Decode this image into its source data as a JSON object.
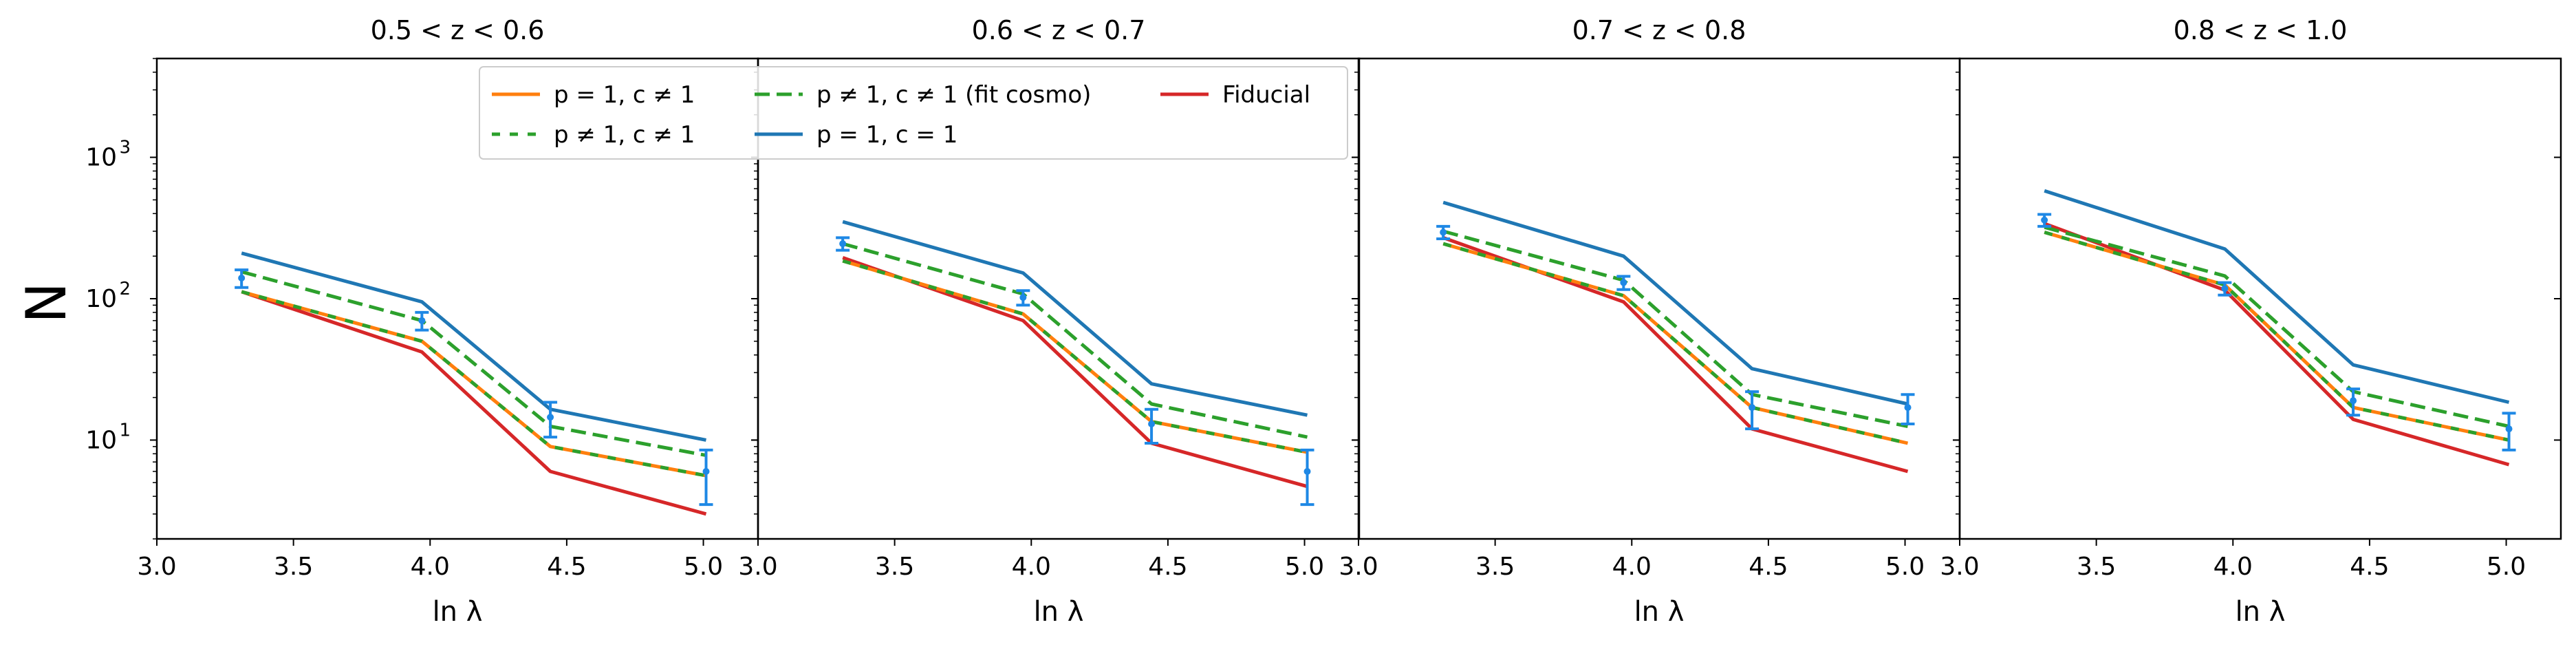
{
  "chart_data": {
    "type": "line",
    "ylabel": "N",
    "yscale": "log",
    "ylim": [
      2,
      5000
    ],
    "xlim": [
      3.0,
      5.2
    ],
    "x": [
      3.31,
      3.97,
      4.44,
      5.01
    ],
    "xticks": [
      {
        "value": 3.0,
        "label": "3.0"
      },
      {
        "value": 3.5,
        "label": "3.5"
      },
      {
        "value": 4.0,
        "label": "4.0"
      },
      {
        "value": 4.5,
        "label": "4.5"
      },
      {
        "value": 5.0,
        "label": "5.0"
      }
    ],
    "yticks": [
      {
        "value": 10,
        "base": "10",
        "exp": "1"
      },
      {
        "value": 100,
        "base": "10",
        "exp": "2"
      },
      {
        "value": 1000,
        "base": "10",
        "exp": "3"
      }
    ],
    "legend": {
      "placement": "top-right of first panel",
      "entries": [
        {
          "key": "p1_cne1",
          "label": "p = 1, c ≠ 1"
        },
        {
          "key": "pne1_c1",
          "label": "p ≠ 1, c ≠ 1"
        },
        {
          "key": "pne1_cne1_fit",
          "label": "p ≠ 1, c ≠ 1 (fit cosmo)"
        },
        {
          "key": "p1_c1",
          "label": "p = 1, c = 1"
        },
        {
          "key": "fiducial",
          "label": "Fiducial"
        }
      ]
    },
    "colors": {
      "p1_cne1": "#ff7f0e",
      "pne1_c1": "#2ca02c",
      "pne1_cne1_fit": "#2ca02c",
      "p1_c1": "#1f77b4",
      "fiducial": "#d62728",
      "data_points": "#1e88e5"
    },
    "panels": [
      {
        "title": "0.5 < z < 0.6",
        "xlabel": "ln λ",
        "series": {
          "p1_cne1": [
            112,
            50,
            9,
            5.6
          ],
          "pne1_c1": [
            112,
            50,
            9,
            5.6
          ],
          "pne1_cne1_fit": [
            155,
            70,
            12.5,
            7.8
          ],
          "p1_c1": [
            210,
            95,
            16.5,
            10
          ],
          "fiducial": [
            112,
            42,
            6,
            3
          ]
        },
        "data": {
          "y": [
            140,
            70,
            14.5,
            6
          ],
          "err": [
            [
              20,
              20
            ],
            [
              10,
              10
            ],
            [
              4,
              4
            ],
            [
              2.5,
              2.5
            ]
          ]
        }
      },
      {
        "title": "0.6 < z < 0.7",
        "xlabel": "ln λ",
        "series": {
          "p1_cne1": [
            185,
            78,
            13.5,
            8.2
          ],
          "pne1_c1": [
            185,
            78,
            13.5,
            8.2
          ],
          "pne1_cne1_fit": [
            245,
            108,
            18,
            10.5
          ],
          "p1_c1": [
            350,
            152,
            25,
            15
          ],
          "fiducial": [
            195,
            70,
            9.5,
            4.7
          ]
        },
        "data": {
          "y": [
            245,
            102,
            13,
            6
          ],
          "err": [
            [
              25,
              25
            ],
            [
              12,
              12
            ],
            [
              3.5,
              3.5
            ],
            [
              2.5,
              2.5
            ]
          ]
        }
      },
      {
        "title": "0.7 < z < 0.8",
        "xlabel": "ln λ",
        "series": {
          "p1_cne1": [
            245,
            105,
            17,
            9.5
          ],
          "pne1_c1": [
            245,
            105,
            17,
            9.5
          ],
          "pne1_cne1_fit": [
            300,
            135,
            21,
            12.5
          ],
          "p1_c1": [
            480,
            200,
            32,
            18
          ],
          "fiducial": [
            270,
            95,
            12,
            6
          ]
        },
        "data": {
          "y": [
            295,
            130,
            17,
            17
          ],
          "err": [
            [
              30,
              30
            ],
            [
              14,
              14
            ],
            [
              5,
              5
            ],
            [
              4,
              4
            ]
          ]
        }
      },
      {
        "title": "0.8 < z < 1.0",
        "xlabel": "ln λ",
        "series": {
          "p1_cne1": [
            295,
            125,
            17,
            10
          ],
          "pne1_c1": [
            295,
            125,
            17,
            10
          ],
          "pne1_cne1_fit": [
            320,
            145,
            22,
            12.5
          ],
          "p1_c1": [
            580,
            225,
            34,
            18.5
          ],
          "fiducial": [
            340,
            115,
            14,
            6.7
          ]
        },
        "data": {
          "y": [
            360,
            118,
            19,
            12
          ],
          "err": [
            [
              35,
              35
            ],
            [
              12,
              12
            ],
            [
              4,
              4
            ],
            [
              3.5,
              3.5
            ]
          ]
        }
      }
    ]
  }
}
